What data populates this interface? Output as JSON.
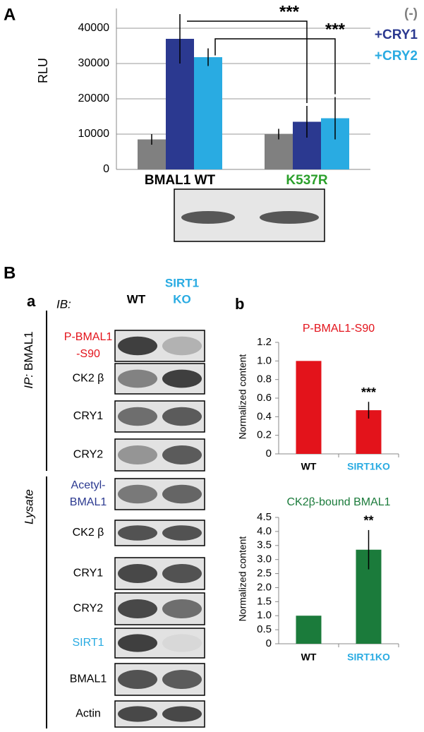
{
  "chart_data": [
    {
      "type": "bar",
      "ylabel": "RLU",
      "categories": [
        "BMAL1 WT",
        "K537R"
      ],
      "category_colors": [
        "#000000",
        "#2ca02c"
      ],
      "series": [
        {
          "name": "(-)",
          "color": "#808080",
          "values": [
            8500,
            10000
          ],
          "errors": [
            1500,
            1500
          ]
        },
        {
          "name": "+CRY1",
          "color": "#2b3990",
          "values": [
            37000,
            13500
          ],
          "errors": [
            7000,
            4500
          ]
        },
        {
          "name": "+CRY2",
          "color": "#29abe2",
          "values": [
            31800,
            14500
          ],
          "errors": [
            2500,
            6000
          ]
        }
      ],
      "ylim": [
        0,
        45000
      ],
      "yticks": [
        0,
        10000,
        20000,
        30000,
        40000
      ],
      "grid": true,
      "annotations": [
        "***",
        "***"
      ]
    },
    {
      "type": "bar",
      "title": "P-BMAL1-S90",
      "title_color": "#e3131b",
      "ylabel": "Normalized content",
      "categories": [
        "WT",
        "SIRT1KO"
      ],
      "category_colors": [
        "#000000",
        "#29abe2"
      ],
      "color": "#e3131b",
      "values": [
        1.0,
        0.47
      ],
      "errors": [
        0,
        0.09
      ],
      "annotation": "***",
      "ylim": [
        0,
        1.2
      ],
      "yticks": [
        0,
        0.2,
        0.4,
        0.6,
        0.8,
        {
          "value": 1,
          "label": "1.0"
        },
        1.2
      ],
      "grid": false
    },
    {
      "type": "bar",
      "title": "CK2β-bound BMAL1",
      "title_color": "#1b7b3b",
      "ylabel": "Normalized content",
      "categories": [
        "WT",
        "SIRT1KO"
      ],
      "category_colors": [
        "#000000",
        "#29abe2"
      ],
      "color": "#1b7b3b",
      "values": [
        1.0,
        3.35
      ],
      "errors": [
        0,
        0.7
      ],
      "annotation": "**",
      "ylim": [
        0,
        4.5
      ],
      "yticks": [
        0,
        0.5,
        {
          "value": 1,
          "label": "1.0"
        },
        1.5,
        {
          "value": 2,
          "label": "2.0"
        },
        2.5,
        {
          "value": 3,
          "label": "3.0"
        },
        3.5,
        {
          "value": 4,
          "label": "4.0"
        },
        4.5
      ],
      "grid": false
    }
  ],
  "panel_labels": [
    "A",
    "B",
    "a",
    "b"
  ],
  "blots": {
    "header": "IB:",
    "lanes": [
      {
        "lines": [
          "WT"
        ],
        "color": "#000000"
      },
      {
        "lines": [
          "SIRT1",
          "KO"
        ],
        "color": "#29abe2"
      }
    ],
    "ip_prefix": "IP:",
    "ip_target": "BMAL1",
    "lysate": "Lysate",
    "rows": [
      {
        "lines": [
          "P-BMAL1",
          "-S90"
        ],
        "color": "#e3131b"
      },
      {
        "lines": [
          "CK2 β"
        ],
        "color": "#000000"
      },
      {
        "lines": [
          "CRY1"
        ],
        "color": "#000000"
      },
      {
        "lines": [
          "CRY2"
        ],
        "color": "#000000"
      },
      {
        "lines": [
          "Acetyl-",
          "BMAL1"
        ],
        "color": "#2b3990"
      },
      {
        "lines": [
          "CK2 β"
        ],
        "color": "#000000"
      },
      {
        "lines": [
          "CRY1"
        ],
        "color": "#000000"
      },
      {
        "lines": [
          "CRY2"
        ],
        "color": "#000000"
      },
      {
        "lines": [
          "SIRT1"
        ],
        "color": "#29abe2"
      },
      {
        "lines": [
          "BMAL1"
        ],
        "color": "#000000"
      },
      {
        "lines": [
          "Actin"
        ],
        "color": "#000000"
      }
    ]
  }
}
